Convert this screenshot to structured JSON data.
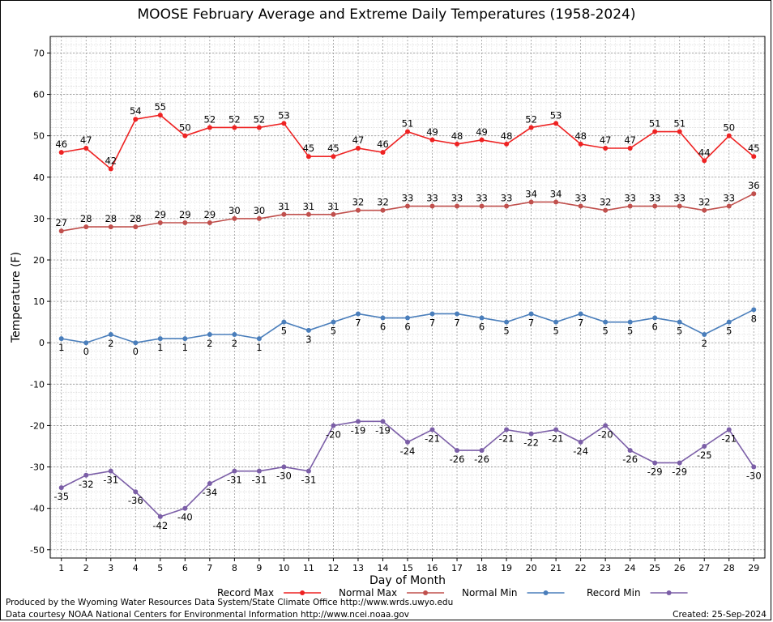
{
  "chart_data": {
    "type": "line",
    "title": "MOOSE February Average and Extreme Daily Temperatures (1958-2024)",
    "xlabel": "Day of Month",
    "ylabel": "Temperature (F)",
    "ylim": [
      -52,
      74
    ],
    "yticks": [
      -50,
      -40,
      -30,
      -20,
      -10,
      0,
      10,
      20,
      30,
      40,
      50,
      60,
      70
    ],
    "x": [
      1,
      2,
      3,
      4,
      5,
      6,
      7,
      8,
      9,
      10,
      11,
      12,
      13,
      14,
      15,
      16,
      17,
      18,
      19,
      20,
      21,
      22,
      23,
      24,
      25,
      26,
      27,
      28,
      29
    ],
    "grid": true,
    "legend_position": "bottom",
    "series": [
      {
        "name": "Record Max",
        "color": "#ee2222",
        "label_pos": "above",
        "values": [
          46,
          47,
          42,
          54,
          55,
          50,
          52,
          52,
          52,
          53,
          45,
          45,
          47,
          46,
          51,
          49,
          48,
          49,
          48,
          52,
          53,
          48,
          47,
          47,
          51,
          51,
          44,
          50,
          45
        ]
      },
      {
        "name": "Normal Max",
        "color": "#c0504d",
        "label_pos": "above",
        "values": [
          27,
          28,
          28,
          28,
          29,
          29,
          29,
          30,
          30,
          31,
          31,
          31,
          32,
          32,
          33,
          33,
          33,
          33,
          33,
          34,
          34,
          33,
          32,
          33,
          33,
          33,
          32,
          33,
          36
        ]
      },
      {
        "name": "Normal Min",
        "color": "#4a7ebb",
        "label_pos": "below",
        "values": [
          1,
          0,
          2,
          0,
          1,
          1,
          2,
          2,
          1,
          5,
          3,
          5,
          7,
          6,
          6,
          7,
          7,
          6,
          5,
          7,
          5,
          7,
          5,
          5,
          6,
          5,
          2,
          5,
          8
        ]
      },
      {
        "name": "Record Min",
        "color": "#7b5ea7",
        "label_pos": "below",
        "values": [
          -35,
          -32,
          -31,
          -36,
          -42,
          -40,
          -34,
          -31,
          -31,
          -30,
          -31,
          -20,
          -19,
          -19,
          -24,
          -21,
          -26,
          -26,
          -21,
          -22,
          -21,
          -24,
          -20,
          -26,
          -29,
          -29,
          -25,
          -21,
          -30
        ]
      }
    ]
  },
  "footer": {
    "credit_line_1": "Produced by the Wyoming Water Resources Data System/State Climate Office http://www.wrds.uwyo.edu",
    "credit_line_2": "Data courtesy NOAA National Centers for Environmental Information http://www.ncei.noaa.gov",
    "created": "Created:  25-Sep-2024"
  }
}
